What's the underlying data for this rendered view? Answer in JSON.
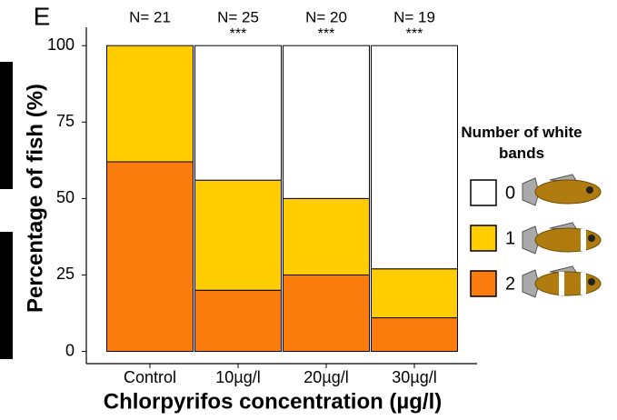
{
  "chart_data": {
    "type": "stacked_bar",
    "panel_label": "E",
    "x_label": "Chlorpyrifos concentration (µg/l)",
    "y_label": "Percentage of fish (%)",
    "categories": [
      "Control",
      "10µg/l",
      "20µg/l",
      "30µg/l"
    ],
    "n_labels": [
      "N=  21",
      "N= 25",
      "N= 20",
      "N= 19"
    ],
    "significance": [
      null,
      "***",
      "***",
      "***"
    ],
    "series": [
      {
        "name": "2",
        "color": "#f97c0c",
        "values": [
          62,
          20,
          25,
          11
        ]
      },
      {
        "name": "1",
        "color": "#ffcc00",
        "values": [
          38,
          36,
          25,
          16
        ]
      },
      {
        "name": "0",
        "color": "#ffffff",
        "values": [
          0,
          44,
          50,
          73
        ]
      }
    ],
    "ylim": [
      -4,
      106
    ],
    "yticks": [
      0,
      25,
      50,
      75,
      100
    ],
    "legend_title": "Number of white bands",
    "legend_position": "right"
  }
}
